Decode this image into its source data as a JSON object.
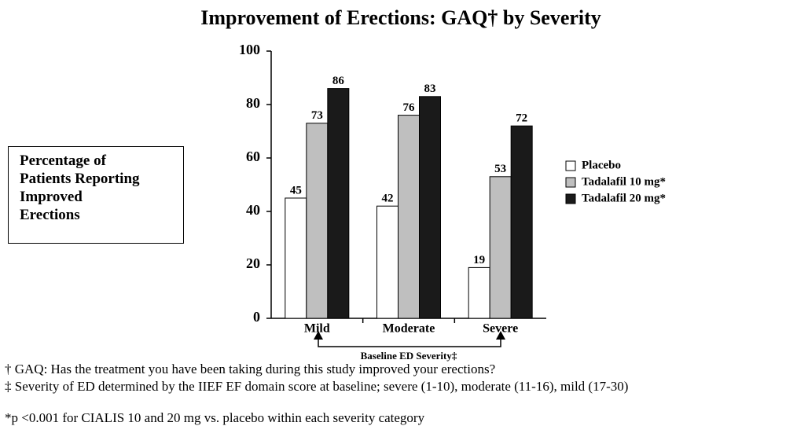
{
  "chart_data": {
    "type": "bar",
    "title": "Improvement of Erections: GAQ† by Severity",
    "y_label": "Percentage of Patients Reporting Improved Erections",
    "x_label": "Baseline ED Severity‡",
    "categories": [
      "Mild",
      "Moderate",
      "Severe"
    ],
    "series": [
      {
        "name": "Placebo",
        "color": "#ffffff",
        "values": [
          45,
          42,
          19
        ]
      },
      {
        "name": "Tadalafil 10 mg*",
        "color": "#bfbfbf",
        "values": [
          73,
          76,
          53
        ]
      },
      {
        "name": "Tadalafil 20 mg*",
        "color": "#1a1a1a",
        "values": [
          86,
          83,
          72
        ]
      }
    ],
    "ylim": [
      0,
      100
    ],
    "yticks": [
      0,
      20,
      40,
      60,
      80,
      100
    ],
    "grid": false,
    "legend": "right",
    "footnotes": [
      "† GAQ: Has the treatment you have been taking during this study improved your erections?",
      "‡ Severity of ED determined by the IIEF EF domain score at baseline; severe (1-10), moderate (11-16), mild (17-30)",
      "*p <0.001 for CIALIS 10 and 20 mg vs. placebo within each severity category"
    ]
  }
}
